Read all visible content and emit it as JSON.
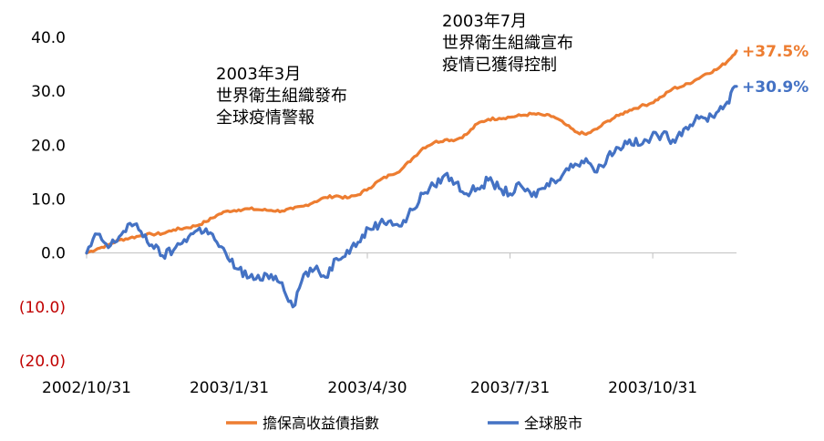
{
  "chart_data": {
    "type": "line",
    "title": "",
    "xlabel": "",
    "ylabel": "",
    "ylim": [
      -20,
      40
    ],
    "yticks": [
      {
        "value": 40,
        "label": "40.0"
      },
      {
        "value": 30,
        "label": "30.0"
      },
      {
        "value": 20,
        "label": "20.0"
      },
      {
        "value": 10,
        "label": "10.0"
      },
      {
        "value": 0,
        "label": "0.0"
      },
      {
        "value": -10,
        "label": "(10.0)"
      },
      {
        "value": -20,
        "label": "(20.0)"
      }
    ],
    "x_start": "2002-10-31",
    "x_end": "2003-12-24",
    "xticks": [
      "2002/10/31",
      "2003/1/31",
      "2003/4/30",
      "2003/7/31",
      "2003/10/31"
    ],
    "grid": false,
    "legend_position": "bottom",
    "series": [
      {
        "name": "擔保高收益債指數",
        "color": "#ed7d31",
        "end_label": "+37.5%",
        "points": [
          [
            "2002-10-31",
            0.0
          ],
          [
            "2002-11-07",
            0.8
          ],
          [
            "2002-11-14",
            1.5
          ],
          [
            "2002-11-21",
            2.4
          ],
          [
            "2002-11-28",
            2.8
          ],
          [
            "2002-12-05",
            3.2
          ],
          [
            "2002-12-12",
            3.5
          ],
          [
            "2002-12-19",
            3.6
          ],
          [
            "2002-12-26",
            4.3
          ],
          [
            "2003-01-02",
            4.6
          ],
          [
            "2003-01-09",
            5.0
          ],
          [
            "2003-01-16",
            5.8
          ],
          [
            "2003-01-23",
            7.0
          ],
          [
            "2003-01-30",
            7.8
          ],
          [
            "2003-02-06",
            8.0
          ],
          [
            "2003-02-13",
            8.2
          ],
          [
            "2003-02-20",
            8.0
          ],
          [
            "2003-02-27",
            7.9
          ],
          [
            "2003-03-06",
            7.8
          ],
          [
            "2003-03-13",
            8.2
          ],
          [
            "2003-03-20",
            8.7
          ],
          [
            "2003-03-27",
            9.5
          ],
          [
            "2003-04-03",
            10.3
          ],
          [
            "2003-04-10",
            10.6
          ],
          [
            "2003-04-17",
            10.2
          ],
          [
            "2003-04-24",
            10.8
          ],
          [
            "2003-05-01",
            12.0
          ],
          [
            "2003-05-08",
            13.5
          ],
          [
            "2003-05-15",
            14.5
          ],
          [
            "2003-05-22",
            15.5
          ],
          [
            "2003-05-29",
            17.5
          ],
          [
            "2003-06-05",
            19.5
          ],
          [
            "2003-06-12",
            20.5
          ],
          [
            "2003-06-19",
            21.0
          ],
          [
            "2003-06-26",
            21.0
          ],
          [
            "2003-07-03",
            22.0
          ],
          [
            "2003-07-10",
            24.0
          ],
          [
            "2003-07-17",
            24.8
          ],
          [
            "2003-07-24",
            25.0
          ],
          [
            "2003-07-31",
            25.2
          ],
          [
            "2003-08-07",
            25.5
          ],
          [
            "2003-08-14",
            25.8
          ],
          [
            "2003-08-21",
            25.6
          ],
          [
            "2003-08-28",
            25.3
          ],
          [
            "2003-09-04",
            24.0
          ],
          [
            "2003-09-11",
            22.5
          ],
          [
            "2003-09-18",
            22.0
          ],
          [
            "2003-09-25",
            23.0
          ],
          [
            "2003-10-02",
            24.5
          ],
          [
            "2003-10-09",
            25.5
          ],
          [
            "2003-10-16",
            26.5
          ],
          [
            "2003-10-23",
            27.2
          ],
          [
            "2003-10-30",
            27.8
          ],
          [
            "2003-11-06",
            29.0
          ],
          [
            "2003-11-13",
            30.5
          ],
          [
            "2003-11-20",
            31.0
          ],
          [
            "2003-11-27",
            32.0
          ],
          [
            "2003-12-04",
            33.2
          ],
          [
            "2003-12-11",
            34.0
          ],
          [
            "2003-12-18",
            35.5
          ],
          [
            "2003-12-24",
            37.5
          ]
        ]
      },
      {
        "name": "全球股市",
        "color": "#4472c4",
        "end_label": "+30.9%",
        "points": [
          [
            "2002-10-31",
            0.0
          ],
          [
            "2002-11-07",
            3.5
          ],
          [
            "2002-11-14",
            1.0
          ],
          [
            "2002-11-21",
            3.0
          ],
          [
            "2002-11-28",
            5.5
          ],
          [
            "2002-12-05",
            4.0
          ],
          [
            "2002-12-12",
            1.5
          ],
          [
            "2002-12-19",
            -0.5
          ],
          [
            "2002-12-26",
            0.5
          ],
          [
            "2003-01-02",
            2.5
          ],
          [
            "2003-01-09",
            4.0
          ],
          [
            "2003-01-16",
            4.5
          ],
          [
            "2003-01-23",
            2.0
          ],
          [
            "2003-01-30",
            -1.0
          ],
          [
            "2003-02-06",
            -3.0
          ],
          [
            "2003-02-13",
            -4.5
          ],
          [
            "2003-02-20",
            -5.0
          ],
          [
            "2003-02-27",
            -4.0
          ],
          [
            "2003-03-06",
            -5.5
          ],
          [
            "2003-03-13",
            -10.0
          ],
          [
            "2003-03-20",
            -4.0
          ],
          [
            "2003-03-27",
            -3.0
          ],
          [
            "2003-04-03",
            -4.5
          ],
          [
            "2003-04-10",
            -1.0
          ],
          [
            "2003-04-17",
            0.5
          ],
          [
            "2003-04-24",
            2.0
          ],
          [
            "2003-05-01",
            4.5
          ],
          [
            "2003-05-08",
            5.5
          ],
          [
            "2003-05-15",
            6.0
          ],
          [
            "2003-05-22",
            5.0
          ],
          [
            "2003-05-29",
            8.0
          ],
          [
            "2003-06-05",
            11.0
          ],
          [
            "2003-06-12",
            12.5
          ],
          [
            "2003-06-19",
            14.5
          ],
          [
            "2003-06-26",
            13.0
          ],
          [
            "2003-07-03",
            11.0
          ],
          [
            "2003-07-10",
            12.0
          ],
          [
            "2003-07-17",
            13.5
          ],
          [
            "2003-07-24",
            12.0
          ],
          [
            "2003-07-31",
            11.0
          ],
          [
            "2003-08-07",
            12.5
          ],
          [
            "2003-08-14",
            10.5
          ],
          [
            "2003-08-21",
            12.0
          ],
          [
            "2003-08-28",
            13.5
          ],
          [
            "2003-09-04",
            15.0
          ],
          [
            "2003-09-11",
            16.5
          ],
          [
            "2003-09-18",
            17.5
          ],
          [
            "2003-09-25",
            15.0
          ],
          [
            "2003-10-02",
            18.0
          ],
          [
            "2003-10-09",
            19.5
          ],
          [
            "2003-10-16",
            21.0
          ],
          [
            "2003-10-23",
            20.0
          ],
          [
            "2003-10-30",
            21.5
          ],
          [
            "2003-11-06",
            22.0
          ],
          [
            "2003-11-13",
            21.0
          ],
          [
            "2003-11-20",
            23.0
          ],
          [
            "2003-11-27",
            24.5
          ],
          [
            "2003-12-04",
            25.0
          ],
          [
            "2003-12-11",
            26.0
          ],
          [
            "2003-12-18",
            28.0
          ],
          [
            "2003-12-24",
            30.9
          ]
        ]
      }
    ],
    "annotations": [
      {
        "date": "2003-03-20",
        "lines": [
          "2003年3月",
          "世界衛生組織發布",
          "全球疫情警報"
        ]
      },
      {
        "date": "2003-07-05",
        "lines": [
          "2003年7月",
          "世界衛生組織宣布",
          "疫情已獲得控制"
        ]
      }
    ]
  }
}
